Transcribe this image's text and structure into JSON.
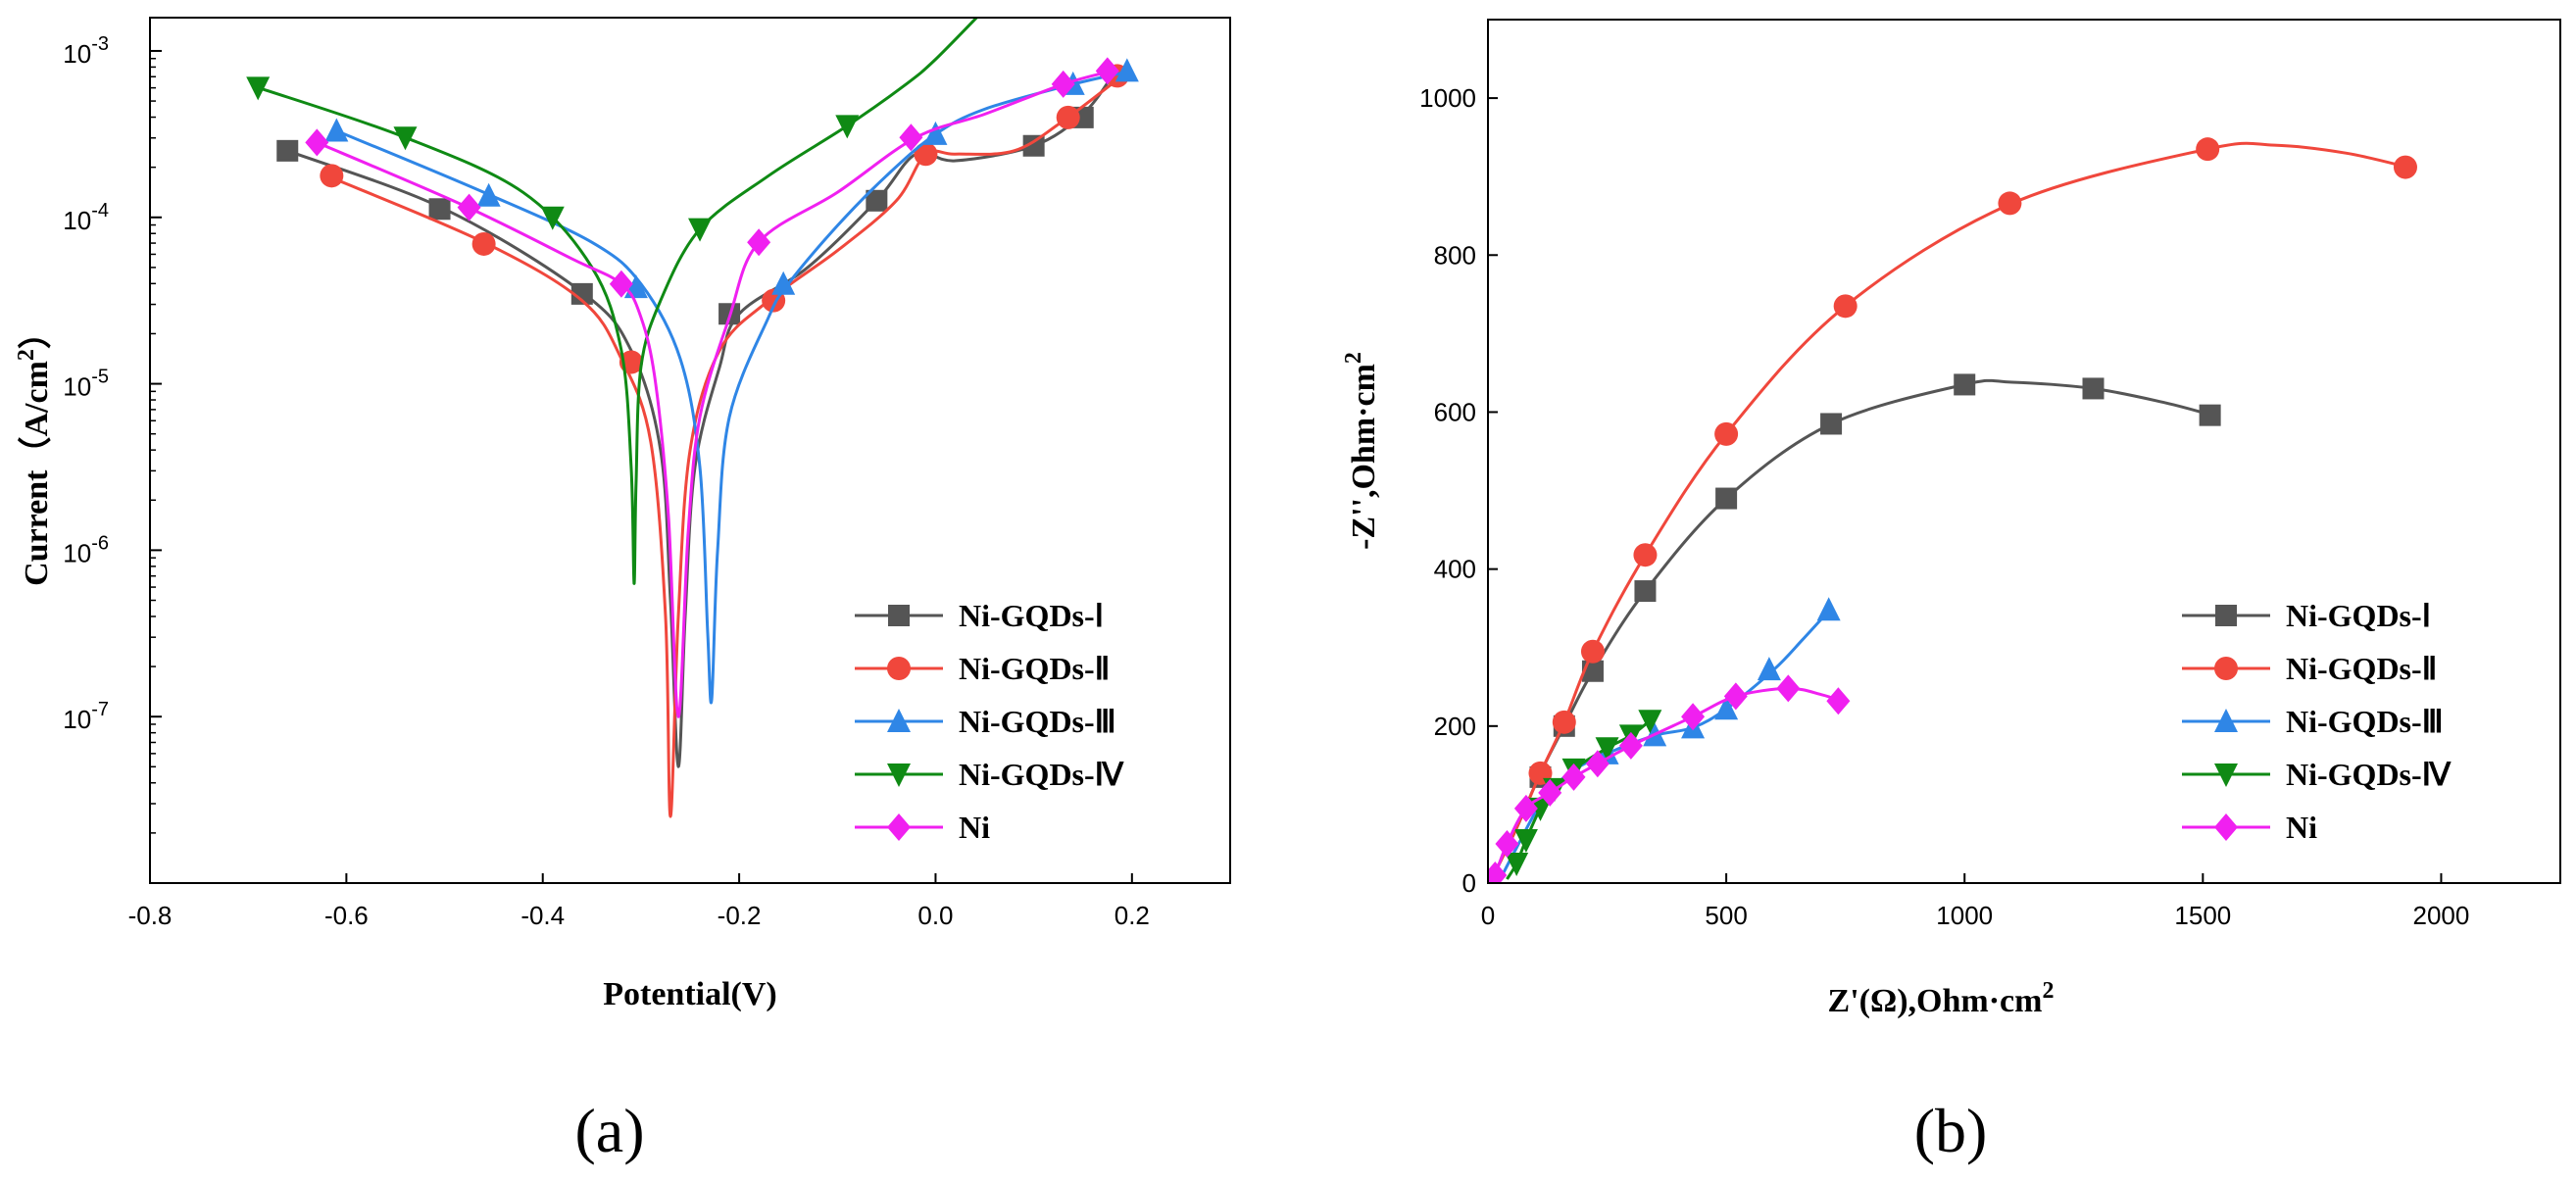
{
  "colors": {
    "I": "#555555",
    "II": "#f0473c",
    "III": "#2f86e6",
    "IV": "#0f8a14",
    "Ni": "#f020f0"
  },
  "chart_data": [
    {
      "id": "a",
      "panel_label": "(a)",
      "type": "line",
      "title": "",
      "xlabel": "Potential(V)",
      "ylabel": "Current（A/cm²）",
      "ylabel_main": "Current（A/cm",
      "ylabel_sup": "2",
      "ylabel_end": "）",
      "xlim": [
        -0.8,
        0.3
      ],
      "ylim_log10": [
        -8,
        -2.8
      ],
      "yscale": "log",
      "grid": false,
      "legend": "bottom-right",
      "xticks": [
        {
          "v": -0.8,
          "label": "-0.8"
        },
        {
          "v": -0.6,
          "label": "-0.6"
        },
        {
          "v": -0.4,
          "label": "-0.4"
        },
        {
          "v": -0.2,
          "label": "-0.2"
        },
        {
          "v": 0.0,
          "label": "0.0"
        },
        {
          "v": 0.2,
          "label": "0.2"
        }
      ],
      "yticks": [
        {
          "exp": -3,
          "base": "10",
          "sup": "-3"
        },
        {
          "exp": -4,
          "base": "10",
          "sup": "-4"
        },
        {
          "exp": -5,
          "base": "10",
          "sup": "-5"
        },
        {
          "exp": -6,
          "base": "10",
          "sup": "-6"
        },
        {
          "exp": -7,
          "base": "10",
          "sup": "-7"
        }
      ],
      "series": [
        {
          "key": "I",
          "name": "Ni-GQDs-Ⅰ",
          "marker": "square",
          "curve": [
            [
              -0.66,
              -3.6
            ],
            [
              -0.5,
              -3.95
            ],
            [
              -0.36,
              -4.45
            ],
            [
              -0.31,
              -4.8
            ],
            [
              -0.28,
              -5.4
            ],
            [
              -0.27,
              -6.3
            ],
            [
              -0.262,
              -7.3
            ],
            [
              -0.255,
              -6.4
            ],
            [
              -0.245,
              -5.5
            ],
            [
              -0.22,
              -4.9
            ],
            [
              -0.2,
              -4.58
            ],
            [
              -0.13,
              -4.3
            ],
            [
              -0.06,
              -3.9
            ],
            [
              -0.02,
              -3.62
            ],
            [
              0.02,
              -3.66
            ],
            [
              0.1,
              -3.57
            ],
            [
              0.15,
              -3.38
            ],
            [
              0.18,
              -3.15
            ]
          ],
          "markers": [
            [
              -0.66,
              -3.6
            ],
            [
              -0.505,
              -3.95
            ],
            [
              -0.36,
              -4.46
            ],
            [
              -0.21,
              -4.58
            ],
            [
              -0.06,
              -3.9
            ],
            [
              0.1,
              -3.57
            ],
            [
              0.15,
              -3.4
            ]
          ]
        },
        {
          "key": "II",
          "name": "Ni-GQDs-Ⅱ",
          "marker": "circle",
          "curve": [
            [
              -0.62,
              -3.75
            ],
            [
              -0.46,
              -4.15
            ],
            [
              -0.36,
              -4.5
            ],
            [
              -0.32,
              -4.85
            ],
            [
              -0.29,
              -5.35
            ],
            [
              -0.275,
              -6.4
            ],
            [
              -0.27,
              -7.6
            ],
            [
              -0.262,
              -6.4
            ],
            [
              -0.25,
              -5.4
            ],
            [
              -0.22,
              -4.8
            ],
            [
              -0.17,
              -4.5
            ],
            [
              -0.1,
              -4.2
            ],
            [
              -0.04,
              -3.9
            ],
            [
              -0.01,
              -3.62
            ],
            [
              0.02,
              -3.62
            ],
            [
              0.08,
              -3.6
            ],
            [
              0.13,
              -3.42
            ],
            [
              0.19,
              -3.15
            ]
          ],
          "markers": [
            [
              -0.615,
              -3.75
            ],
            [
              -0.46,
              -4.16
            ],
            [
              -0.31,
              -4.87
            ],
            [
              -0.165,
              -4.5
            ],
            [
              -0.01,
              -3.62
            ],
            [
              0.135,
              -3.4
            ],
            [
              0.185,
              -3.15
            ]
          ]
        },
        {
          "key": "III",
          "name": "Ni-GQDs-Ⅲ",
          "marker": "triangle",
          "curve": [
            [
              -0.61,
              -3.48
            ],
            [
              -0.46,
              -3.85
            ],
            [
              -0.35,
              -4.15
            ],
            [
              -0.3,
              -4.4
            ],
            [
              -0.26,
              -4.85
            ],
            [
              -0.24,
              -5.5
            ],
            [
              -0.232,
              -6.5
            ],
            [
              -0.228,
              -6.9
            ],
            [
              -0.222,
              -6.0
            ],
            [
              -0.21,
              -5.2
            ],
            [
              -0.17,
              -4.6
            ],
            [
              -0.15,
              -4.4
            ],
            [
              -0.1,
              -4.05
            ],
            [
              -0.05,
              -3.75
            ],
            [
              0.0,
              -3.5
            ],
            [
              0.05,
              -3.35
            ],
            [
              0.14,
              -3.2
            ],
            [
              0.2,
              -3.12
            ]
          ],
          "markers": [
            [
              -0.61,
              -3.48
            ],
            [
              -0.455,
              -3.87
            ],
            [
              -0.305,
              -4.42
            ],
            [
              -0.155,
              -4.4
            ],
            [
              0.0,
              -3.5
            ],
            [
              0.14,
              -3.2
            ],
            [
              0.195,
              -3.12
            ]
          ]
        },
        {
          "key": "IV",
          "name": "Ni-GQDs-Ⅳ",
          "marker": "triangle-down",
          "curve": [
            [
              -0.69,
              -3.22
            ],
            [
              -0.54,
              -3.52
            ],
            [
              -0.42,
              -3.85
            ],
            [
              -0.35,
              -4.3
            ],
            [
              -0.32,
              -4.8
            ],
            [
              -0.31,
              -5.5
            ],
            [
              -0.307,
              -6.2
            ],
            [
              -0.305,
              -5.6
            ],
            [
              -0.3,
              -4.9
            ],
            [
              -0.28,
              -4.5
            ],
            [
              -0.24,
              -4.07
            ],
            [
              -0.17,
              -3.75
            ],
            [
              -0.09,
              -3.45
            ],
            [
              -0.03,
              -3.2
            ],
            [
              0.0,
              -3.05
            ],
            [
              0.05,
              -2.75
            ]
          ],
          "markers": [
            [
              -0.69,
              -3.22
            ],
            [
              -0.54,
              -3.52
            ],
            [
              -0.39,
              -4.0
            ],
            [
              -0.24,
              -4.07
            ],
            [
              -0.09,
              -3.45
            ]
          ]
        },
        {
          "key": "Ni",
          "name": "Ni",
          "marker": "diamond",
          "curve": [
            [
              -0.63,
              -3.55
            ],
            [
              -0.48,
              -3.93
            ],
            [
              -0.37,
              -4.25
            ],
            [
              -0.32,
              -4.4
            ],
            [
              -0.3,
              -4.6
            ],
            [
              -0.285,
              -5.0
            ],
            [
              -0.272,
              -5.8
            ],
            [
              -0.262,
              -7.0
            ],
            [
              -0.252,
              -5.9
            ],
            [
              -0.24,
              -5.2
            ],
            [
              -0.21,
              -4.6
            ],
            [
              -0.18,
              -4.15
            ],
            [
              -0.1,
              -3.85
            ],
            [
              -0.02,
              -3.52
            ],
            [
              0.05,
              -3.38
            ],
            [
              0.13,
              -3.2
            ],
            [
              0.18,
              -3.12
            ]
          ],
          "markers": [
            [
              -0.63,
              -3.55
            ],
            [
              -0.475,
              -3.94
            ],
            [
              -0.32,
              -4.4
            ],
            [
              -0.18,
              -4.15
            ],
            [
              -0.025,
              -3.52
            ],
            [
              0.13,
              -3.2
            ],
            [
              0.175,
              -3.12
            ]
          ]
        }
      ]
    },
    {
      "id": "b",
      "panel_label": "(b)",
      "type": "scatter",
      "title": "",
      "xlabel": "Z'(Ω),Ohm·cm²",
      "xlabel_main": "Z'(Ω),Ohm·cm",
      "xlabel_sup": "2",
      "ylabel": "-Z'',Ohm·cm²",
      "ylabel_main": "-Z'',Ohm·cm",
      "ylabel_sup": "2",
      "xlim": [
        0,
        2250
      ],
      "ylim": [
        0,
        1100
      ],
      "grid": false,
      "legend": "bottom-right",
      "xticks": [
        0,
        500,
        1000,
        1500,
        2000
      ],
      "yticks": [
        0,
        200,
        400,
        600,
        800,
        1000
      ],
      "series": [
        {
          "key": "I",
          "name": "Ni-GQDs-Ⅰ",
          "marker": "square",
          "curve": [
            [
              20,
              20
            ],
            [
              60,
              70
            ],
            [
              110,
              140
            ],
            [
              160,
              200
            ],
            [
              220,
              270
            ],
            [
              330,
              372
            ],
            [
              500,
              490
            ],
            [
              720,
              585
            ],
            [
              1000,
              635
            ],
            [
              1100,
              638
            ],
            [
              1270,
              630
            ],
            [
              1420,
              612
            ],
            [
              1520,
              596
            ]
          ],
          "markers": [
            [
              110,
              135
            ],
            [
              160,
              200
            ],
            [
              220,
              270
            ],
            [
              330,
              372
            ],
            [
              500,
              490
            ],
            [
              720,
              585
            ],
            [
              1000,
              635
            ],
            [
              1270,
              630
            ],
            [
              1515,
              596
            ]
          ]
        },
        {
          "key": "II",
          "name": "Ni-GQDs-Ⅱ",
          "marker": "circle",
          "curve": [
            [
              20,
              20
            ],
            [
              60,
              70
            ],
            [
              110,
              140
            ],
            [
              160,
              205
            ],
            [
              220,
              295
            ],
            [
              330,
              418
            ],
            [
              500,
              572
            ],
            [
              750,
              735
            ],
            [
              1100,
              866
            ],
            [
              1510,
              935
            ],
            [
              1650,
              940
            ],
            [
              1800,
              930
            ],
            [
              1930,
              912
            ]
          ],
          "markers": [
            [
              110,
              140
            ],
            [
              160,
              205
            ],
            [
              220,
              295
            ],
            [
              330,
              418
            ],
            [
              500,
              572
            ],
            [
              750,
              735
            ],
            [
              1095,
              866
            ],
            [
              1510,
              935
            ],
            [
              1925,
              912
            ]
          ]
        },
        {
          "key": "III",
          "name": "Ni-GQDs-Ⅲ",
          "marker": "triangle",
          "curve": [
            [
              30,
              10
            ],
            [
              60,
              45
            ],
            [
              110,
              100
            ],
            [
              170,
              140
            ],
            [
              250,
              165
            ],
            [
              350,
              188
            ],
            [
              430,
              198
            ],
            [
              500,
              222
            ],
            [
              600,
              272
            ],
            [
              660,
              310
            ],
            [
              720,
              350
            ]
          ],
          "markers": [
            [
              250,
              165
            ],
            [
              350,
              188
            ],
            [
              430,
              198
            ],
            [
              500,
              222
            ],
            [
              590,
              272
            ],
            [
              715,
              348
            ]
          ]
        },
        {
          "key": "IV",
          "name": "Ni-GQDs-Ⅳ",
          "marker": "triangle-down",
          "curve": [
            [
              40,
              5
            ],
            [
              60,
              25
            ],
            [
              80,
              55
            ],
            [
              110,
              95
            ],
            [
              140,
              120
            ],
            [
              180,
              145
            ],
            [
              250,
              172
            ],
            [
              300,
              188
            ],
            [
              340,
              207
            ]
          ],
          "markers": [
            [
              60,
              25
            ],
            [
              80,
              55
            ],
            [
              110,
              95
            ],
            [
              140,
              120
            ],
            [
              180,
              145
            ],
            [
              250,
              172
            ],
            [
              300,
              188
            ],
            [
              340,
              207
            ]
          ]
        },
        {
          "key": "Ni",
          "name": "Ni",
          "marker": "diamond",
          "curve": [
            [
              15,
              10
            ],
            [
              40,
              50
            ],
            [
              80,
              95
            ],
            [
              130,
              115
            ],
            [
              180,
              135
            ],
            [
              230,
              152
            ],
            [
              300,
              175
            ],
            [
              430,
              212
            ],
            [
              520,
              238
            ],
            [
              630,
              248
            ],
            [
              700,
              240
            ],
            [
              740,
              232
            ]
          ],
          "markers": [
            [
              15,
              10
            ],
            [
              40,
              50
            ],
            [
              80,
              95
            ],
            [
              130,
              115
            ],
            [
              180,
              135
            ],
            [
              230,
              152
            ],
            [
              300,
              175
            ],
            [
              430,
              212
            ],
            [
              520,
              238
            ],
            [
              630,
              248
            ],
            [
              735,
              232
            ]
          ]
        }
      ]
    }
  ]
}
